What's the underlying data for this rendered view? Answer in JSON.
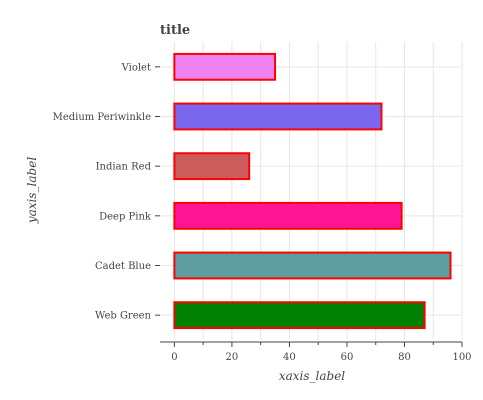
{
  "chart_data": {
    "type": "bar",
    "orientation": "horizontal",
    "title": "title",
    "xlabel": "xaxis_label",
    "ylabel": "yaxis_label",
    "xlim": [
      -5,
      100
    ],
    "xticks": [
      0,
      20,
      40,
      60,
      80,
      100
    ],
    "categories": [
      "Web Green",
      "Cadet Blue",
      "Deep Pink",
      "Indian Red",
      "Medium Periwinkle",
      "Violet"
    ],
    "values": [
      87,
      96,
      79,
      26,
      72,
      35
    ],
    "colors": [
      "#008000",
      "#5f9ea0",
      "#ff1493",
      "#cd5c5c",
      "#7b68ee",
      "#ee82ee"
    ],
    "edge_color": "#ff0000",
    "grid": true
  }
}
